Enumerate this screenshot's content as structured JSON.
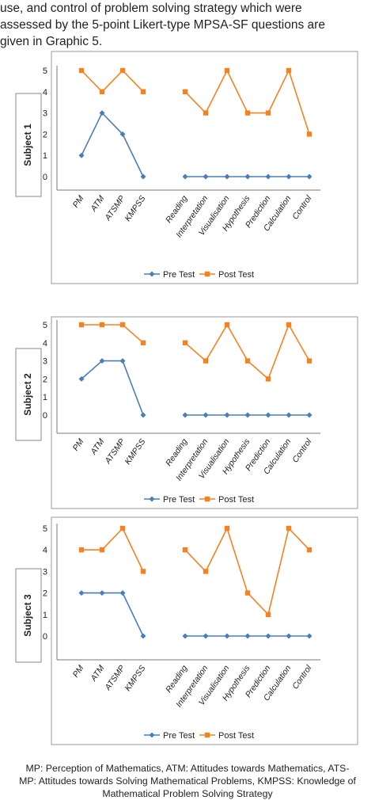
{
  "intro_lines": [
    "use, and control of problem solving strategy which were",
    "assessed by the 5-point Likert-type MPSA-SF questions are",
    "given in Graphic 5."
  ],
  "footer_lines": [
    "MP: Perception of Mathematics, ATM: Attitudes towards Mathematics, ATS-",
    "MP: Attitudes towards Solving Mathematical Problems, KMPSS: Knowledge of",
    "Mathematical Problem Solving Strategy"
  ],
  "colors": {
    "pre": "#4a7ebb",
    "post": "#f58220",
    "frame": "#9a9a9a"
  },
  "chart_data": [
    {
      "type": "line",
      "title": "Subject 1",
      "categories": [
        "PM",
        "ATM",
        "ATSMP",
        "KMPSS",
        "Reading",
        "Interpretation",
        "Visualisation",
        "Hypothesis",
        "Prediction",
        "Calculation",
        "Control"
      ],
      "ylim": [
        0,
        5
      ],
      "y_ticks": [
        "0",
        "1",
        "2",
        "3",
        "4",
        "5"
      ],
      "series": [
        {
          "name": "Pre Test",
          "values": [
            1,
            3,
            2,
            0,
            0,
            0,
            0,
            0,
            0,
            0,
            0
          ]
        },
        {
          "name": "Post Test",
          "values": [
            5,
            4,
            5,
            4,
            4,
            3,
            5,
            3,
            3,
            5,
            2
          ]
        }
      ],
      "legend": "bottom"
    },
    {
      "type": "line",
      "title": "Subject 2",
      "categories": [
        "PM",
        "ATM",
        "ATSMP",
        "KMPSS",
        "Reading",
        "Interpretation",
        "Visualisation",
        "Hypothesis",
        "Prediction",
        "Calculation",
        "Control"
      ],
      "ylim": [
        0,
        5
      ],
      "y_ticks": [
        "0",
        "1",
        "2",
        "3",
        "4",
        "5"
      ],
      "series": [
        {
          "name": "Pre Test",
          "values": [
            2,
            3,
            3,
            0,
            0,
            0,
            0,
            0,
            0,
            0,
            0
          ]
        },
        {
          "name": "Post Test",
          "values": [
            5,
            5,
            5,
            4,
            4,
            3,
            5,
            3,
            2,
            5,
            3
          ]
        }
      ],
      "legend": "bottom"
    },
    {
      "type": "line",
      "title": "Subject 3",
      "categories": [
        "PM",
        "ATM",
        "ATSMP",
        "KMPSS",
        "Reading",
        "Interpretation",
        "Visualisation",
        "Hypothesis",
        "Prediction",
        "Calculation",
        "Control"
      ],
      "ylim": [
        0,
        5
      ],
      "y_ticks": [
        "0",
        "1",
        "2",
        "3",
        "4",
        "5"
      ],
      "series": [
        {
          "name": "Pre Test",
          "values": [
            2,
            2,
            2,
            0,
            0,
            0,
            0,
            0,
            0,
            0,
            0
          ]
        },
        {
          "name": "Post Test",
          "values": [
            4,
            4,
            5,
            3,
            4,
            3,
            5,
            2,
            1,
            5,
            4
          ]
        }
      ],
      "legend": "bottom"
    }
  ]
}
